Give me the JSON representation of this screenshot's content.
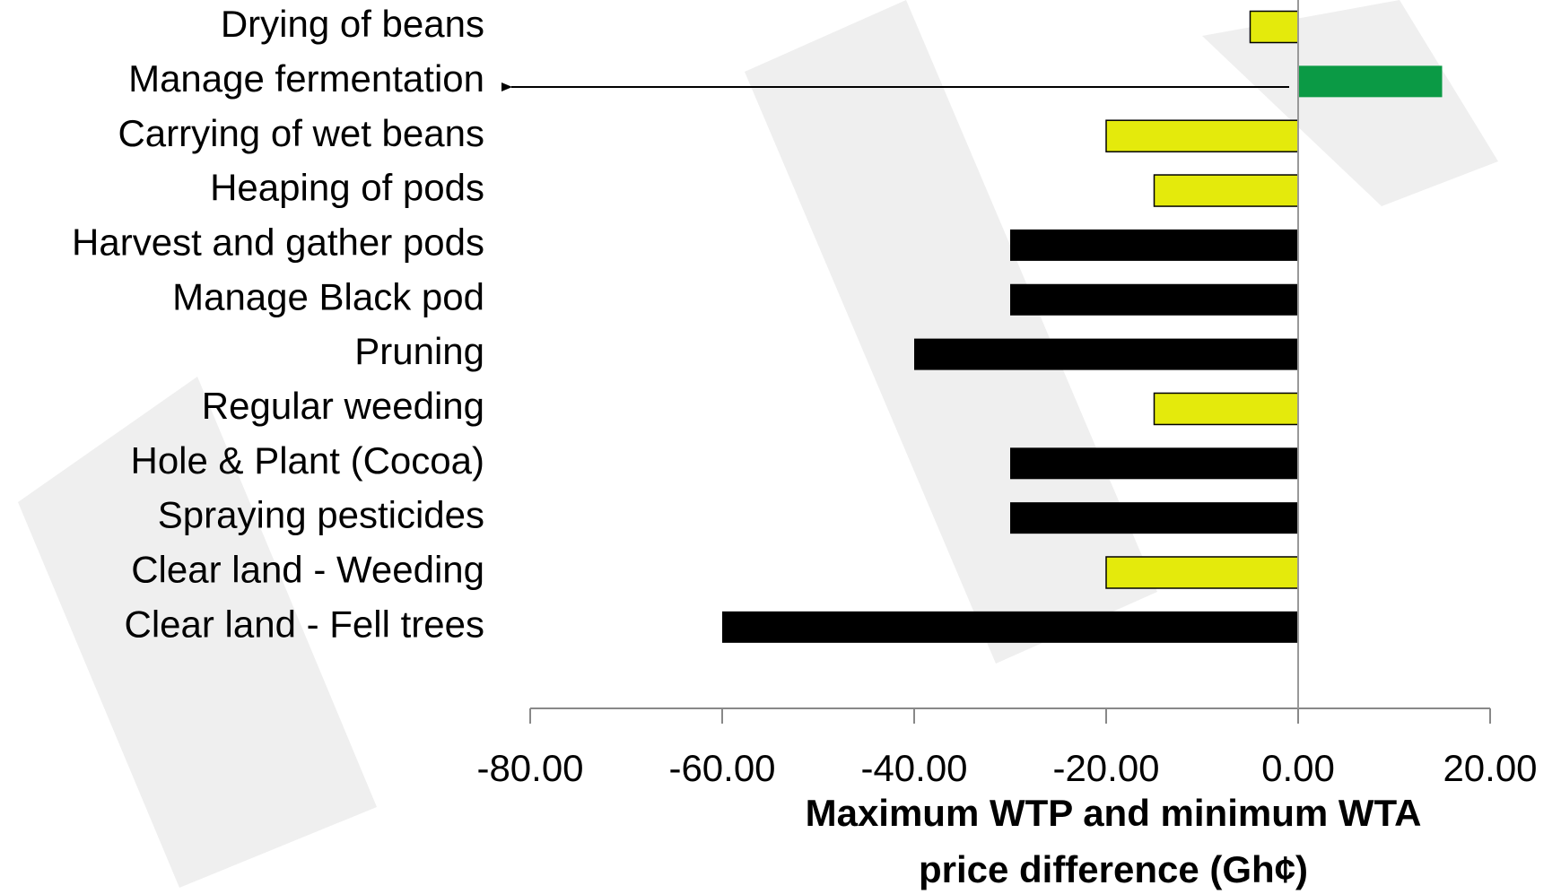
{
  "chart_data": {
    "type": "barh",
    "categories": [
      "Drying of beans",
      "Manage fermentation",
      "Carrying of wet beans",
      "Heaping of pods",
      "Harvest and gather pods",
      "Manage Black pod",
      "Pruning",
      "Regular weeding",
      "Hole & Plant  (Cocoa)",
      "Spraying pesticides",
      "Clear land - Weeding",
      "Clear land - Fell trees"
    ],
    "values": [
      -5,
      15,
      -20,
      -15,
      -30,
      -30,
      -40,
      -15,
      -30,
      -30,
      -20,
      -60
    ],
    "colors": [
      "#e4ea0c",
      "#0b9a45",
      "#e4ea0c",
      "#e4ea0c",
      "#000000",
      "#000000",
      "#000000",
      "#e4ea0c",
      "#000000",
      "#000000",
      "#e4ea0c",
      "#000000"
    ],
    "xlim": [
      -80,
      20
    ],
    "xticks": [
      {
        "value": -80,
        "label": "-80.00"
      },
      {
        "value": -60,
        "label": "-60.00"
      },
      {
        "value": -40,
        "label": "-40.00"
      },
      {
        "value": -20,
        "label": "-20.00"
      },
      {
        "value": 0,
        "label": "0.00"
      },
      {
        "value": 20,
        "label": "20.00"
      }
    ],
    "x_label": [
      "Maximum WTP and minimum WTA",
      "price difference (Gh¢)"
    ],
    "grid": false
  }
}
